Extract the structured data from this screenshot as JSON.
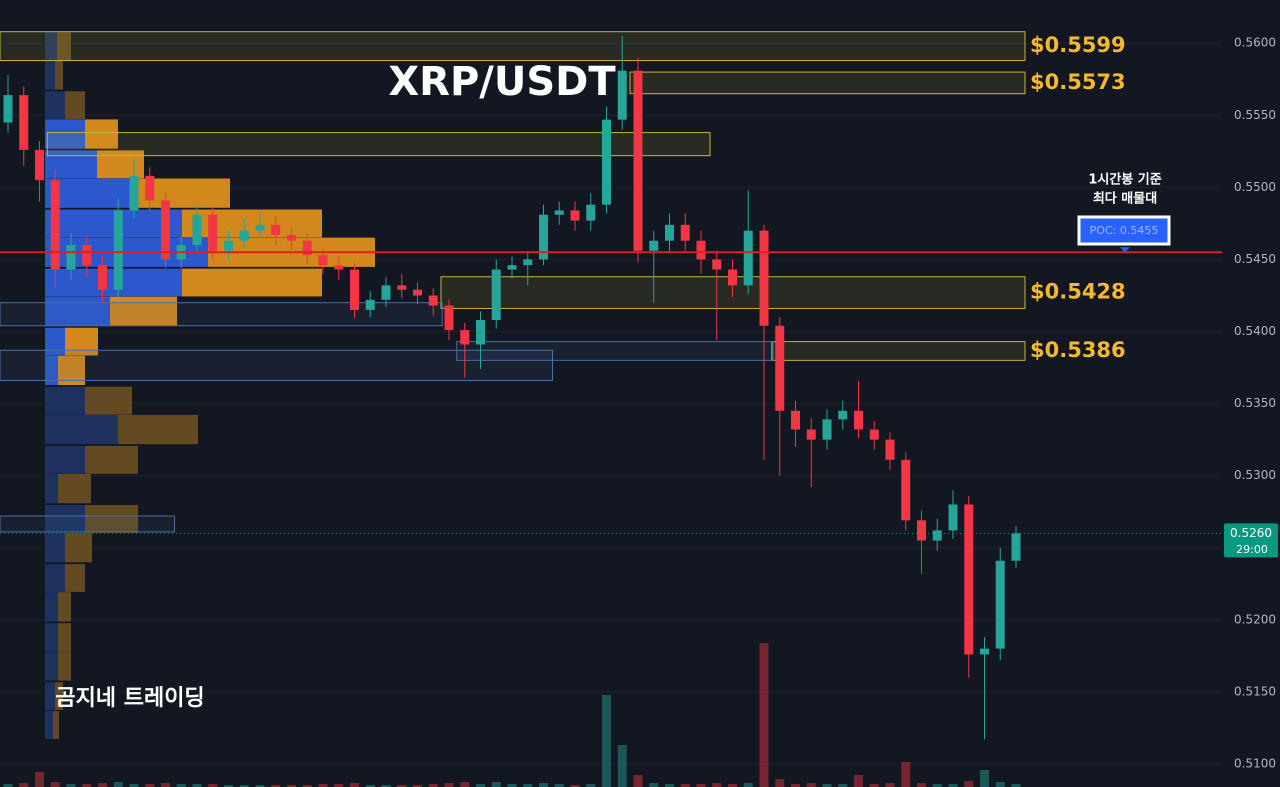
{
  "chart_data": {
    "type": "candlestick",
    "title": "XRP/USDT",
    "watermark": "곰지네 트레이딩",
    "ylim": [
      0.5084,
      0.563
    ],
    "yticks": [
      {
        "value": 0.56,
        "label": "0.5600"
      },
      {
        "value": 0.555,
        "label": "0.5550"
      },
      {
        "value": 0.55,
        "label": "0.5500"
      },
      {
        "value": 0.545,
        "label": "0.5450"
      },
      {
        "value": 0.54,
        "label": "0.5400"
      },
      {
        "value": 0.535,
        "label": "0.5350"
      },
      {
        "value": 0.53,
        "label": "0.5300"
      },
      {
        "value": 0.525,
        "label": "0.5250"
      },
      {
        "value": 0.52,
        "label": "0.5200"
      },
      {
        "value": 0.515,
        "label": "0.5150"
      },
      {
        "value": 0.51,
        "label": "0.5100"
      }
    ],
    "grid": true,
    "up_color": "#26a69a",
    "down_color": "#f23645",
    "open": [
      0.5545,
      0.5564,
      0.5526,
      0.5505,
      0.5443,
      0.546,
      0.5446,
      0.5429,
      0.5484,
      0.5508,
      0.5491,
      0.545,
      0.546,
      0.5481,
      0.5456,
      0.5463,
      0.547,
      0.5474,
      0.5467,
      0.5463,
      0.5453,
      0.5446,
      0.5443,
      0.5415,
      0.5422,
      0.5432,
      0.5429,
      0.5425,
      0.5418,
      0.5401,
      0.5391,
      0.5408,
      0.5443,
      0.5446,
      0.545,
      0.5481,
      0.5484,
      0.5477,
      0.5488,
      0.5547,
      0.5581,
      0.5456,
      0.5463,
      0.5474,
      0.5463,
      0.545,
      0.5443,
      0.5432,
      0.547,
      0.5404,
      0.5345,
      0.5332,
      0.5325,
      0.5339,
      0.5345,
      0.5332,
      0.5325,
      0.5311,
      0.5269,
      0.5255,
      0.5262,
      0.528,
      0.5176,
      0.518,
      0.5241
    ],
    "high": [
      0.5578,
      0.557,
      0.5532,
      0.5512,
      0.5468,
      0.5466,
      0.5452,
      0.5492,
      0.552,
      0.5514,
      0.5496,
      0.5466,
      0.5488,
      0.5486,
      0.547,
      0.5478,
      0.5482,
      0.548,
      0.5472,
      0.5468,
      0.5458,
      0.5452,
      0.5448,
      0.5428,
      0.5438,
      0.544,
      0.5434,
      0.543,
      0.5422,
      0.5406,
      0.5414,
      0.545,
      0.5452,
      0.5456,
      0.5488,
      0.549,
      0.549,
      0.5496,
      0.5556,
      0.5605,
      0.559,
      0.547,
      0.5482,
      0.5482,
      0.547,
      0.5456,
      0.545,
      0.5498,
      0.5474,
      0.541,
      0.5352,
      0.534,
      0.5346,
      0.5352,
      0.5366,
      0.5338,
      0.533,
      0.5316,
      0.5276,
      0.527,
      0.529,
      0.5286,
      0.5188,
      0.525,
      0.5265
    ],
    "low": [
      0.5538,
      0.5515,
      0.549,
      0.543,
      0.5436,
      0.5438,
      0.542,
      0.5424,
      0.5478,
      0.5484,
      0.5444,
      0.5444,
      0.5455,
      0.545,
      0.545,
      0.5458,
      0.5465,
      0.546,
      0.5457,
      0.5447,
      0.544,
      0.5436,
      0.5409,
      0.541,
      0.5417,
      0.5423,
      0.5419,
      0.5411,
      0.5394,
      0.5368,
      0.5374,
      0.5402,
      0.5437,
      0.5432,
      0.5446,
      0.5474,
      0.547,
      0.547,
      0.5482,
      0.554,
      0.5448,
      0.542,
      0.5456,
      0.5456,
      0.544,
      0.5394,
      0.5424,
      0.5426,
      0.5311,
      0.53,
      0.532,
      0.5292,
      0.5318,
      0.5332,
      0.5326,
      0.5318,
      0.5304,
      0.5262,
      0.5232,
      0.5248,
      0.5256,
      0.516,
      0.5117,
      0.5172,
      0.5236
    ],
    "close": [
      0.5564,
      0.5526,
      0.5505,
      0.5443,
      0.546,
      0.5446,
      0.5429,
      0.5484,
      0.5508,
      0.5491,
      0.545,
      0.546,
      0.5481,
      0.5456,
      0.5463,
      0.547,
      0.5474,
      0.5467,
      0.5463,
      0.5453,
      0.5446,
      0.5443,
      0.5415,
      0.5422,
      0.5432,
      0.5429,
      0.5425,
      0.5418,
      0.5401,
      0.5391,
      0.5408,
      0.5443,
      0.5446,
      0.545,
      0.5481,
      0.5484,
      0.5477,
      0.5488,
      0.5547,
      0.5581,
      0.5456,
      0.5463,
      0.5474,
      0.5463,
      0.545,
      0.5443,
      0.5432,
      0.547,
      0.5404,
      0.5345,
      0.5332,
      0.5325,
      0.5339,
      0.5345,
      0.5332,
      0.5325,
      0.5311,
      0.5269,
      0.5255,
      0.5262,
      0.528,
      0.5176,
      0.518,
      0.5241,
      0.526
    ],
    "volume": [
      3,
      4,
      15,
      5,
      3,
      3,
      4,
      5,
      3,
      3,
      4,
      3,
      3,
      3,
      2,
      2,
      2,
      2,
      2,
      2,
      3,
      3,
      4,
      2,
      2,
      2,
      2,
      3,
      4,
      5,
      3,
      5,
      3,
      3,
      4,
      3,
      2,
      3,
      92,
      42,
      12,
      4,
      3,
      3,
      3,
      4,
      3,
      4,
      144,
      8,
      3,
      4,
      3,
      3,
      12,
      3,
      4,
      25,
      4,
      3,
      3,
      6,
      17,
      5,
      3
    ],
    "volume_profile": {
      "prices": [
        0.5598,
        0.5578,
        0.5557,
        0.5537,
        0.5516,
        0.5496,
        0.5475,
        0.5455,
        0.5434,
        0.5414,
        0.5393,
        0.5373,
        0.5352,
        0.5332,
        0.5311,
        0.5291,
        0.527,
        0.525,
        0.5229,
        0.5209,
        0.5188,
        0.5168,
        0.5147,
        0.5127
      ],
      "buy": [
        12,
        10,
        20,
        40,
        52,
        90,
        137,
        163,
        137,
        65,
        20,
        13,
        40,
        73,
        40,
        13,
        40,
        20,
        20,
        13,
        13,
        13,
        10,
        8
      ],
      "sell": [
        14,
        8,
        20,
        33,
        47,
        95,
        140,
        167,
        140,
        67,
        33,
        27,
        47,
        80,
        53,
        33,
        53,
        27,
        20,
        13,
        13,
        13,
        8,
        6
      ],
      "value_area": [
        0.536,
        0.5545
      ]
    },
    "zones": [
      {
        "top": 0.5608,
        "bottom": 0.5588,
        "from": 0,
        "to": 64,
        "color": "#c9b53a",
        "label": "$0.5599"
      },
      {
        "top": 0.558,
        "bottom": 0.5565,
        "from": 40,
        "to": 64,
        "color": "#c9b53a",
        "label": "$0.5573"
      },
      {
        "top": 0.5538,
        "bottom": 0.5522,
        "from": 3,
        "to": 44,
        "color": "#c9b53a"
      },
      {
        "top": 0.5438,
        "bottom": 0.5416,
        "from": 28,
        "to": 64,
        "color": "#c9b53a",
        "label": "$0.5428"
      },
      {
        "top": 0.5393,
        "bottom": 0.538,
        "from": 49,
        "to": 64,
        "color": "#c9b53a",
        "label": "$0.5386"
      },
      {
        "top": 0.542,
        "bottom": 0.5404,
        "from": 0,
        "to": 27,
        "color": "#4a6fa5"
      },
      {
        "top": 0.5393,
        "bottom": 0.538,
        "from": 29,
        "to": 48,
        "color": "#4a6fa5"
      },
      {
        "top": 0.5387,
        "bottom": 0.5366,
        "from": 0,
        "to": 34,
        "color": "#4a6fa5"
      },
      {
        "top": 0.5272,
        "bottom": 0.5261,
        "from": 0,
        "to": 10,
        "color": "#4a6fa5"
      }
    ],
    "poc": {
      "value": 0.5455,
      "label": "POC: 0.5455",
      "color": "#e01e1e"
    },
    "annotation": [
      "1시간봉 기준",
      "최다 매물대"
    ],
    "last_price": {
      "value": 0.526,
      "label": "0.5260"
    },
    "countdown": "29:00"
  }
}
